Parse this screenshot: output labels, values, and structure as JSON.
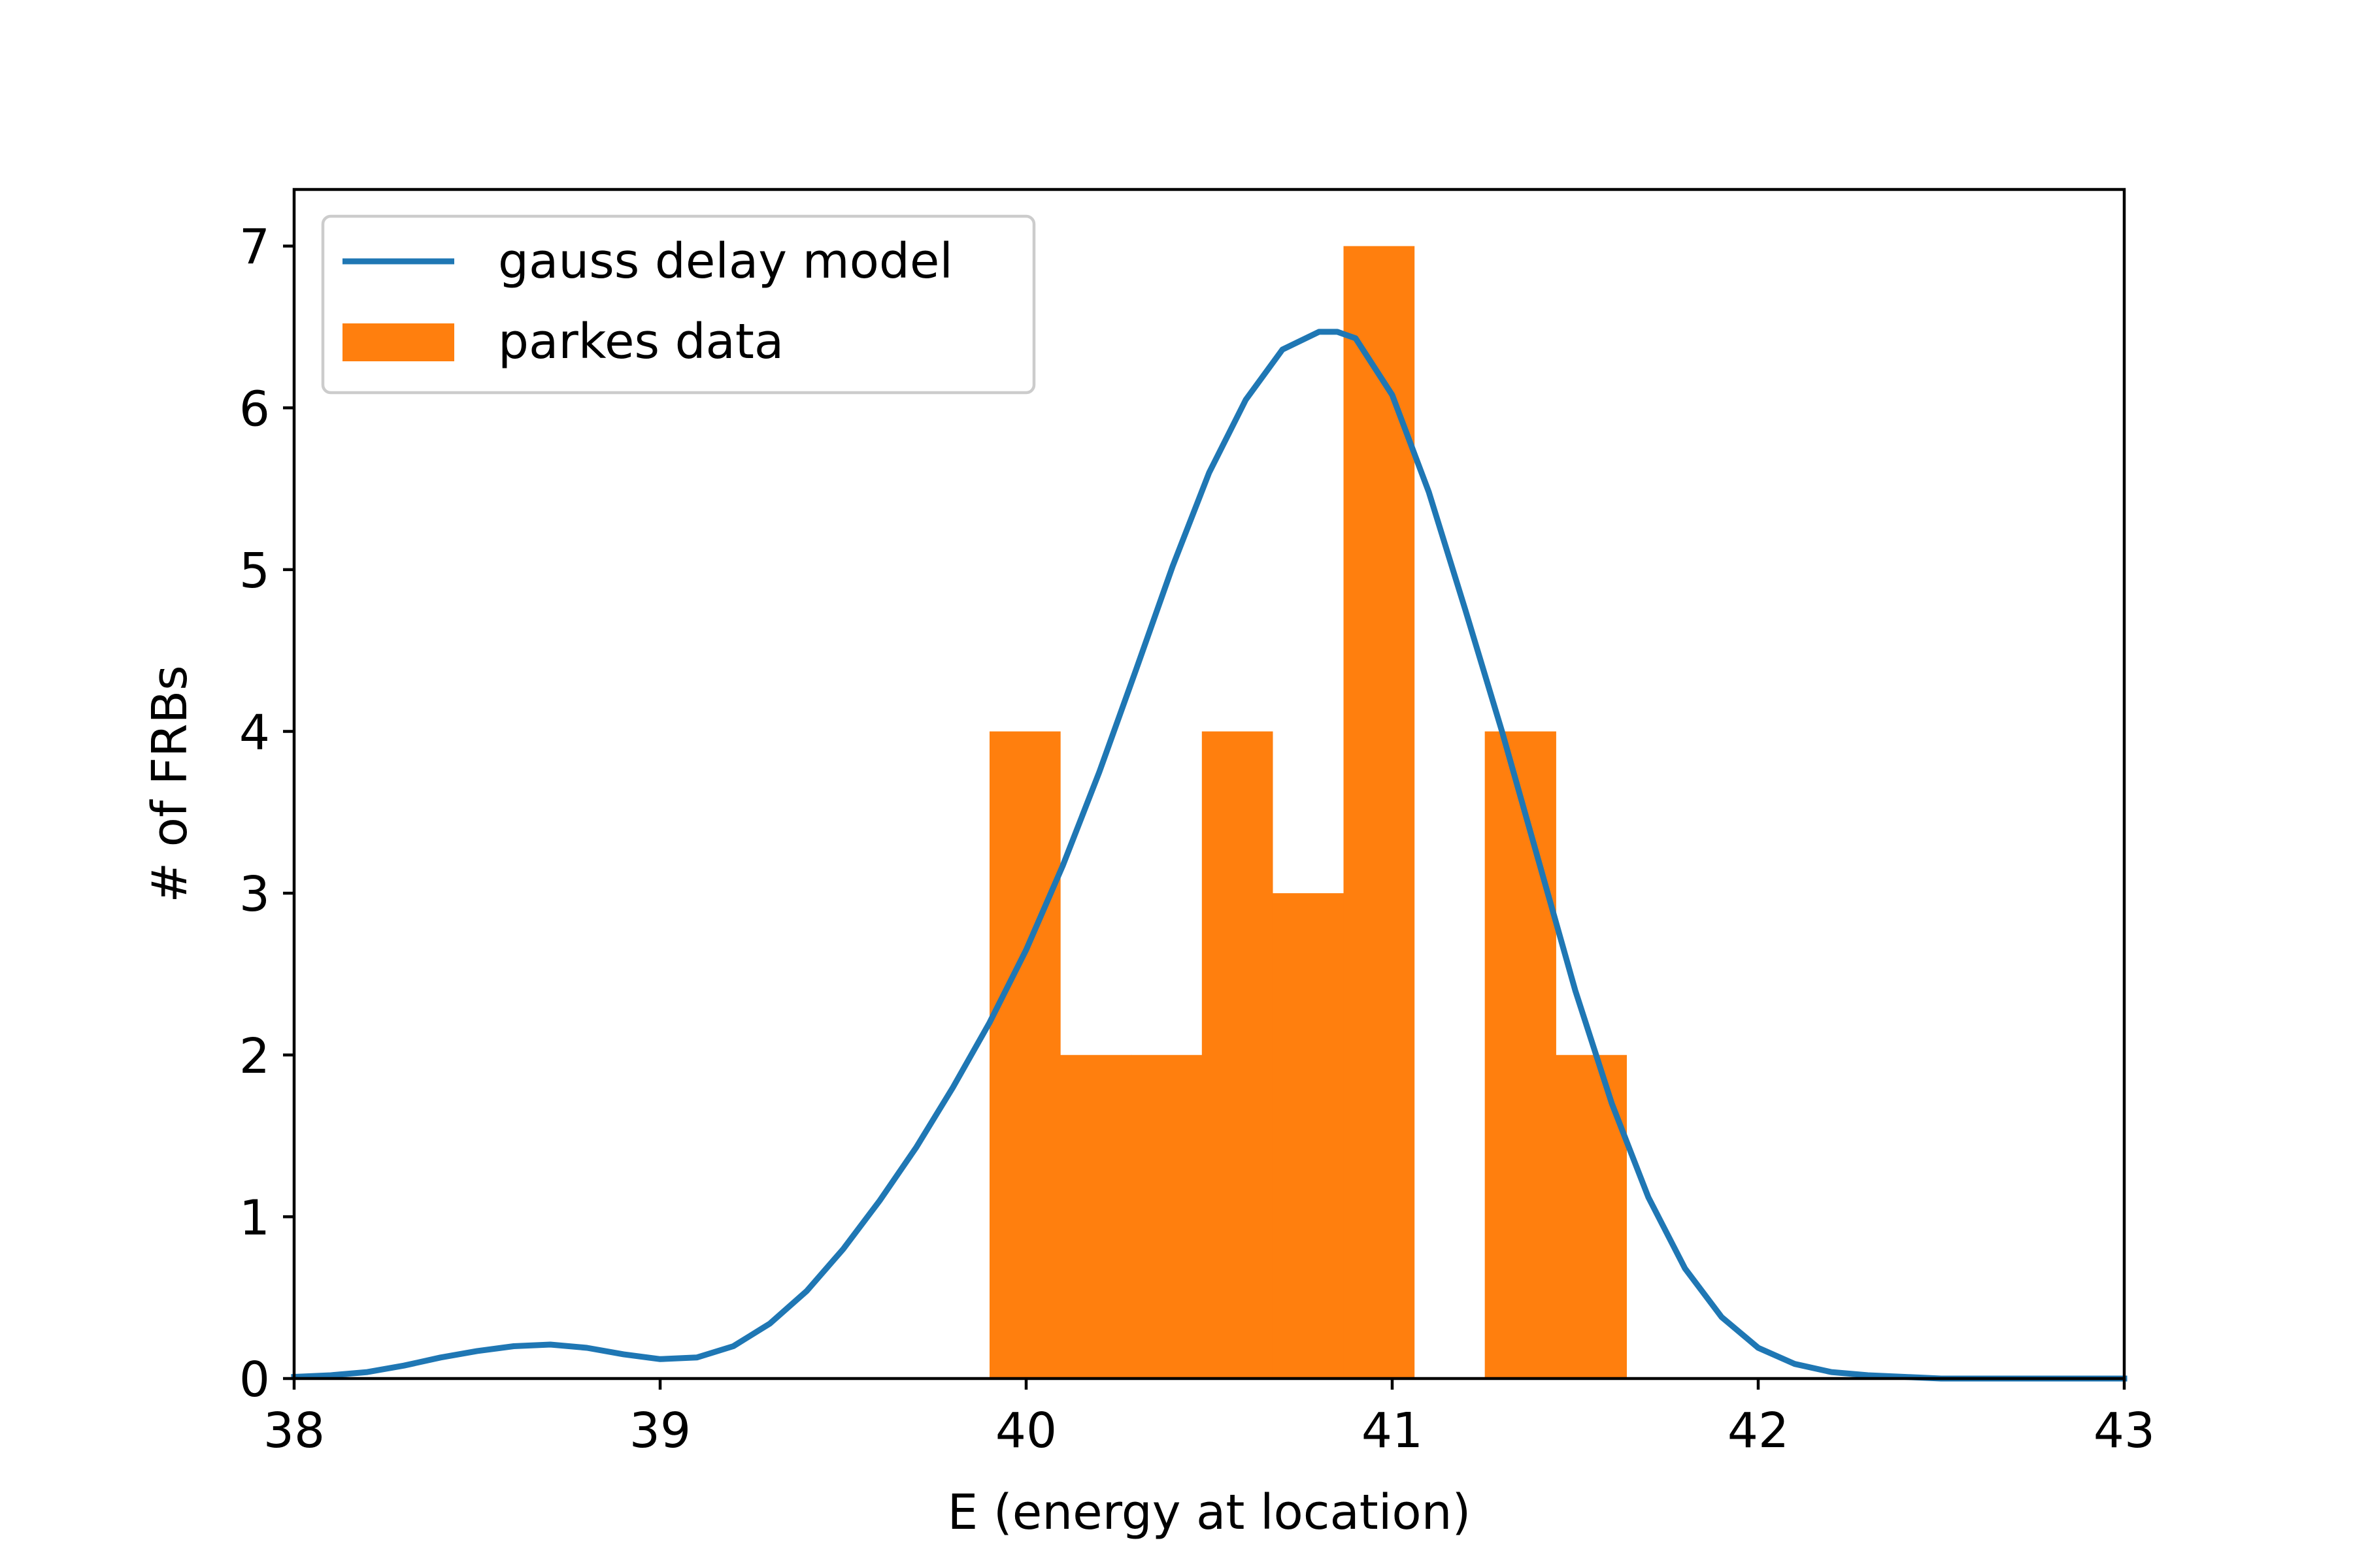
{
  "chart_data": {
    "type": "bar",
    "xlabel": "E (energy at location)",
    "ylabel": "# of FRBs",
    "xlim": [
      38,
      43
    ],
    "ylim": [
      0,
      7.35
    ],
    "xticks": [
      38,
      39,
      40,
      41,
      42,
      43
    ],
    "xtick_labels": [
      "38",
      "39",
      "40",
      "41",
      "42",
      "43"
    ],
    "yticks": [
      0,
      1,
      2,
      3,
      4,
      5,
      6,
      7
    ],
    "ytick_labels": [
      "0",
      "1",
      "2",
      "3",
      "4",
      "5",
      "6",
      "7"
    ],
    "grid": false,
    "legend_position": "upper-left",
    "histogram": {
      "name": "parkes data",
      "color": "#ff7f0e",
      "bin_edges": [
        39.9,
        40.093,
        40.287,
        40.48,
        40.673,
        40.867,
        41.06,
        41.253,
        41.447,
        41.64
      ],
      "counts": [
        4,
        2,
        2,
        4,
        3,
        7,
        0,
        4,
        2
      ]
    },
    "line": {
      "name": "gauss delay model",
      "color": "#1f77b4",
      "x": [
        38.0,
        38.1,
        38.2,
        38.3,
        38.4,
        38.5,
        38.6,
        38.7,
        38.8,
        38.9,
        39.0,
        39.1,
        39.2,
        39.3,
        39.4,
        39.5,
        39.6,
        39.7,
        39.8,
        39.9,
        40.0,
        40.1,
        40.2,
        40.3,
        40.4,
        40.5,
        40.6,
        40.7,
        40.8,
        40.85,
        40.9,
        41.0,
        41.1,
        41.2,
        41.3,
        41.4,
        41.5,
        41.6,
        41.7,
        41.8,
        41.9,
        42.0,
        42.1,
        42.2,
        42.3,
        42.4,
        42.5,
        42.7,
        43.0
      ],
      "y": [
        0.01,
        0.02,
        0.04,
        0.08,
        0.13,
        0.17,
        0.2,
        0.21,
        0.19,
        0.15,
        0.12,
        0.13,
        0.2,
        0.34,
        0.54,
        0.8,
        1.1,
        1.43,
        1.8,
        2.2,
        2.65,
        3.17,
        3.75,
        4.38,
        5.02,
        5.6,
        6.05,
        6.36,
        6.47,
        6.47,
        6.43,
        6.08,
        5.48,
        4.75,
        4.0,
        3.2,
        2.4,
        1.7,
        1.12,
        0.68,
        0.38,
        0.19,
        0.09,
        0.04,
        0.02,
        0.01,
        0.0,
        0.0,
        0.0
      ]
    },
    "legend": [
      "gauss delay model",
      "parkes data"
    ]
  }
}
